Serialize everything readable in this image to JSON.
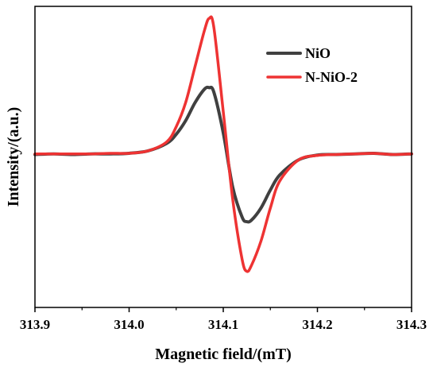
{
  "chart_data": {
    "type": "line",
    "title": "",
    "xlabel": "Magnetic field/(mT)",
    "ylabel": "Intensity/(a.u.)",
    "xlim": [
      313.9,
      314.3
    ],
    "ylim": [
      0,
      1
    ],
    "x_ticks": [
      313.9,
      314.0,
      314.1,
      314.2,
      314.3
    ],
    "x_tick_labels": [
      "313.9",
      "314.0",
      "314.1",
      "314.2",
      "314.3"
    ],
    "y_ticks_labeled": false,
    "grid": false,
    "legend_position": "top-right",
    "series": [
      {
        "name": "NiO",
        "color": "#404040",
        "x": [
          313.9,
          313.92,
          313.94,
          313.96,
          313.98,
          314.0,
          314.02,
          314.04,
          314.05,
          314.06,
          314.07,
          314.08,
          314.085,
          314.09,
          314.1,
          314.11,
          314.12,
          314.125,
          314.13,
          314.14,
          314.15,
          314.16,
          314.18,
          314.2,
          314.22,
          314.24,
          314.26,
          314.28,
          314.3
        ],
        "y": [
          0.508,
          0.51,
          0.508,
          0.51,
          0.51,
          0.512,
          0.52,
          0.545,
          0.575,
          0.62,
          0.68,
          0.725,
          0.73,
          0.715,
          0.58,
          0.4,
          0.3,
          0.285,
          0.29,
          0.33,
          0.39,
          0.44,
          0.49,
          0.506,
          0.508,
          0.51,
          0.512,
          0.508,
          0.51
        ],
        "line_width": 4
      },
      {
        "name": "N-NiO-2",
        "color": "#ee3333",
        "x": [
          313.9,
          313.92,
          313.94,
          313.96,
          313.98,
          314.0,
          314.02,
          314.04,
          314.05,
          314.06,
          314.07,
          314.08,
          314.085,
          314.09,
          314.1,
          314.11,
          314.12,
          314.125,
          314.13,
          314.14,
          314.15,
          314.16,
          314.18,
          314.2,
          314.22,
          314.24,
          314.26,
          314.28,
          314.3
        ],
        "y": [
          0.51,
          0.51,
          0.51,
          0.51,
          0.512,
          0.512,
          0.52,
          0.55,
          0.6,
          0.68,
          0.8,
          0.92,
          0.96,
          0.93,
          0.65,
          0.36,
          0.16,
          0.12,
          0.14,
          0.22,
          0.33,
          0.42,
          0.49,
          0.505,
          0.508,
          0.51,
          0.512,
          0.508,
          0.51
        ],
        "line_width": 3.5
      }
    ]
  }
}
